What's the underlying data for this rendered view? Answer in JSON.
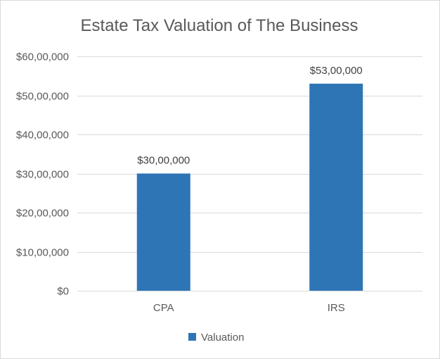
{
  "chart_data": {
    "type": "bar",
    "title": "Estate Tax Valuation of The Business",
    "xlabel": "",
    "ylabel": "",
    "categories": [
      "CPA",
      "IRS"
    ],
    "series": [
      {
        "name": "Valuation",
        "values": [
          3000000,
          5300000
        ],
        "data_labels": [
          "$30,00,000",
          "$53,00,000"
        ],
        "color": "#2e75b6"
      }
    ],
    "ylim": [
      0,
      6000000
    ],
    "yticks": [
      0,
      1000000,
      2000000,
      3000000,
      4000000,
      5000000,
      6000000
    ],
    "ytick_labels": [
      "$0",
      "$10,00,000",
      "$20,00,000",
      "$30,00,000",
      "$40,00,000",
      "$50,00,000",
      "$60,00,000"
    ],
    "grid": true,
    "gridline_color": "#d9d9d9",
    "legend_position": "bottom"
  }
}
